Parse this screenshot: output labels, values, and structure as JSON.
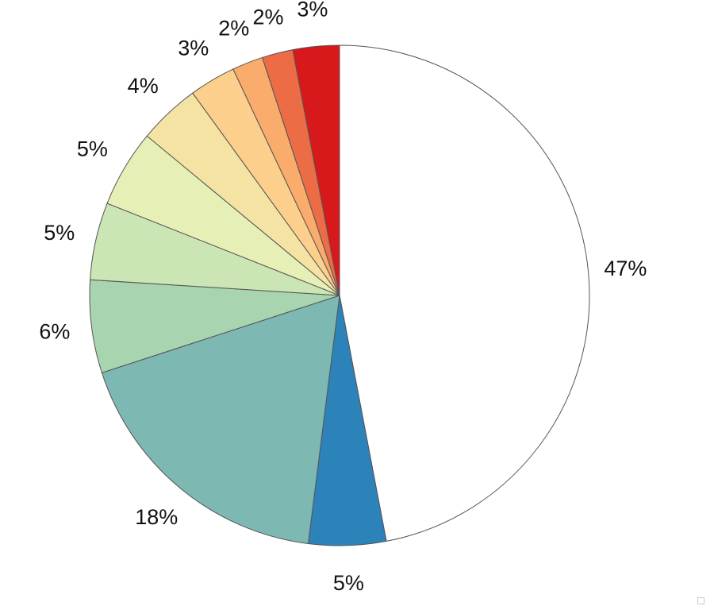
{
  "chart_data": {
    "type": "pie",
    "title": "",
    "start_angle_deg": 0,
    "direction": "clockwise",
    "slices": [
      {
        "label": "47%",
        "value": 47,
        "color": "#ffffff"
      },
      {
        "label": "5%",
        "value": 5,
        "color": "#2b83ba"
      },
      {
        "label": "18%",
        "value": 18,
        "color": "#7db8b2"
      },
      {
        "label": "6%",
        "value": 6,
        "color": "#a8d4b0"
      },
      {
        "label": "5%",
        "value": 5,
        "color": "#cce5b4"
      },
      {
        "label": "5%",
        "value": 5,
        "color": "#e6f0b6"
      },
      {
        "label": "4%",
        "value": 4,
        "color": "#f5e3a4"
      },
      {
        "label": "3%",
        "value": 3,
        "color": "#fdcf8c"
      },
      {
        "label": "2%",
        "value": 2,
        "color": "#f9ac6c"
      },
      {
        "label": "2%",
        "value": 2,
        "color": "#ec6c46"
      },
      {
        "label": "3%",
        "value": 3,
        "color": "#d7191c"
      }
    ]
  }
}
